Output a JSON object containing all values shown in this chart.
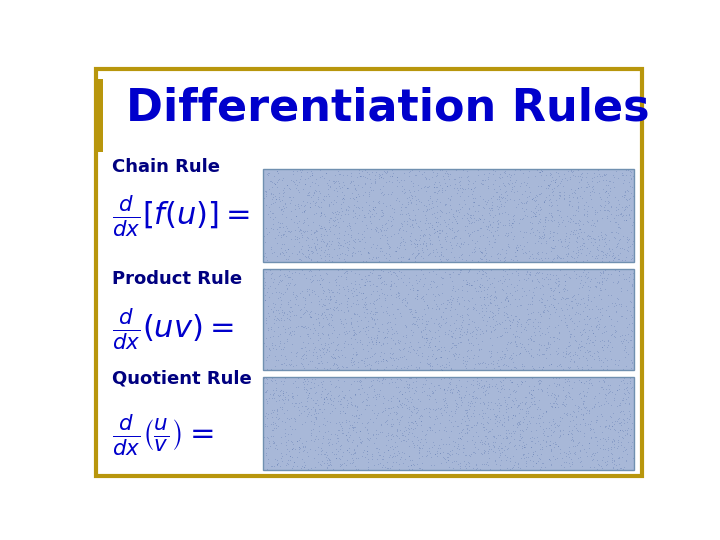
{
  "title": "Differentiation Rules",
  "title_color": "#0000CC",
  "title_fontsize": 32,
  "title_fontweight": "bold",
  "background_color": "#FFFFFF",
  "border_color": "#B8960C",
  "border_linewidth": 3,
  "rule_label_color": "#000080",
  "rule_label_fontsize": 13,
  "formula_color": "#0000CC",
  "box_fill_color": "#A8B8D8",
  "box_edge_color": "#7090B0",
  "chain_label": "Chain Rule",
  "product_label": "Product Rule",
  "quotient_label": "Quotient Rule"
}
